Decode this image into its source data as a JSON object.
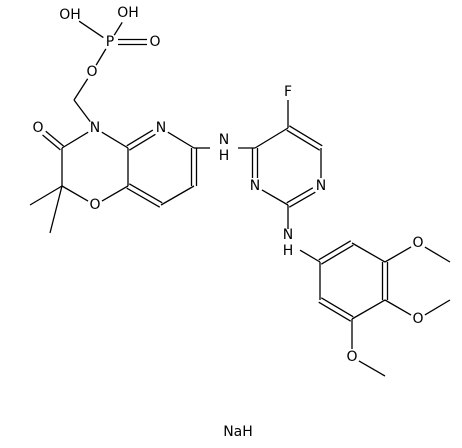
{
  "labels": [
    "OH",
    "OH",
    "P",
    "O",
    "O",
    "N",
    "O",
    "O",
    "N",
    "NH",
    "F",
    "N",
    "N",
    "NH",
    "O",
    "O",
    "O",
    "NaH"
  ]
}
